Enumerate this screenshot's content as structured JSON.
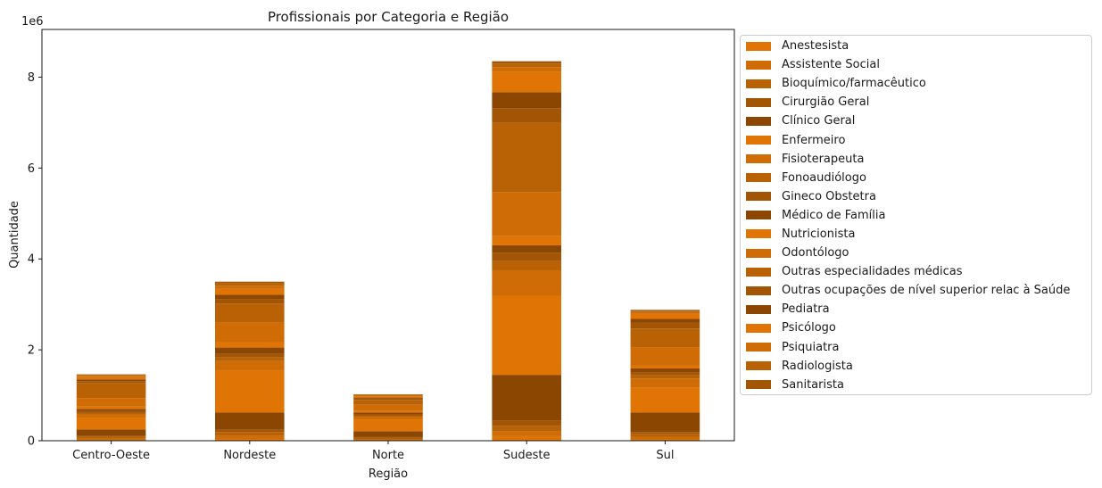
{
  "chart_data": {
    "type": "bar",
    "stacked": true,
    "title": "Profissionais por Categoria e Região",
    "xlabel": "Região",
    "ylabel": "Quantidade",
    "y_scale_label": "1e6",
    "yticks": [
      0,
      2,
      4,
      6,
      8
    ],
    "ylim": [
      0,
      9.05
    ],
    "unit_multiplier": 1000000,
    "categories": [
      "Centro-Oeste",
      "Nordeste",
      "Norte",
      "Sudeste",
      "Sul"
    ],
    "legend_position": "outside-right",
    "series": [
      {
        "name": "Anestesista",
        "color": "#e07506",
        "values": [
          0.02,
          0.04,
          0.01,
          0.1,
          0.03
        ]
      },
      {
        "name": "Assistente Social",
        "color": "#cf6c05",
        "values": [
          0.03,
          0.07,
          0.02,
          0.1,
          0.05
        ]
      },
      {
        "name": "Bioquímico/farmacêutico",
        "color": "#b86105",
        "values": [
          0.04,
          0.08,
          0.03,
          0.12,
          0.07
        ]
      },
      {
        "name": "Cirurgião Geral",
        "color": "#a25504",
        "values": [
          0.02,
          0.05,
          0.02,
          0.13,
          0.04
        ]
      },
      {
        "name": "Clínico Geral",
        "color": "#8b4702",
        "values": [
          0.14,
          0.38,
          0.13,
          1.0,
          0.43
        ]
      },
      {
        "name": "Enfermeiro",
        "color": "#e07506",
        "values": [
          0.26,
          0.93,
          0.26,
          1.74,
          0.55
        ]
      },
      {
        "name": "Fisioterapeuta",
        "color": "#cf6c05",
        "values": [
          0.07,
          0.2,
          0.06,
          0.56,
          0.2
        ]
      },
      {
        "name": "Fonoaudiólogo",
        "color": "#b86105",
        "values": [
          0.03,
          0.08,
          0.02,
          0.2,
          0.07
        ]
      },
      {
        "name": "Gineco Obstetra",
        "color": "#a25504",
        "values": [
          0.04,
          0.08,
          0.03,
          0.19,
          0.07
        ]
      },
      {
        "name": "Médico de Família",
        "color": "#8b4702",
        "values": [
          0.05,
          0.14,
          0.04,
          0.16,
          0.08
        ]
      },
      {
        "name": "Nutricionista",
        "color": "#e07506",
        "values": [
          0.05,
          0.12,
          0.04,
          0.2,
          0.06
        ]
      },
      {
        "name": "Odontólogo",
        "color": "#cf6c05",
        "values": [
          0.19,
          0.44,
          0.13,
          0.97,
          0.41
        ]
      },
      {
        "name": "Outras especialidades médicas",
        "color": "#b86105",
        "values": [
          0.33,
          0.41,
          0.11,
          1.53,
          0.41
        ]
      },
      {
        "name": "Outras ocupações de nível superior relac à Saúde",
        "color": "#a25504",
        "values": [
          0.04,
          0.1,
          0.03,
          0.32,
          0.13
        ]
      },
      {
        "name": "Pediatra",
        "color": "#8b4702",
        "values": [
          0.04,
          0.09,
          0.02,
          0.35,
          0.08
        ]
      },
      {
        "name": "Psicólogo",
        "color": "#e07506",
        "values": [
          0.05,
          0.13,
          0.03,
          0.45,
          0.11
        ]
      },
      {
        "name": "Psiquiatra",
        "color": "#cf6c05",
        "values": [
          0.03,
          0.07,
          0.02,
          0.1,
          0.04
        ]
      },
      {
        "name": "Radiologista",
        "color": "#b86105",
        "values": [
          0.02,
          0.05,
          0.01,
          0.08,
          0.03
        ]
      },
      {
        "name": "Sanitarista",
        "color": "#a25504",
        "values": [
          0.01,
          0.04,
          0.01,
          0.05,
          0.02
        ]
      }
    ]
  }
}
